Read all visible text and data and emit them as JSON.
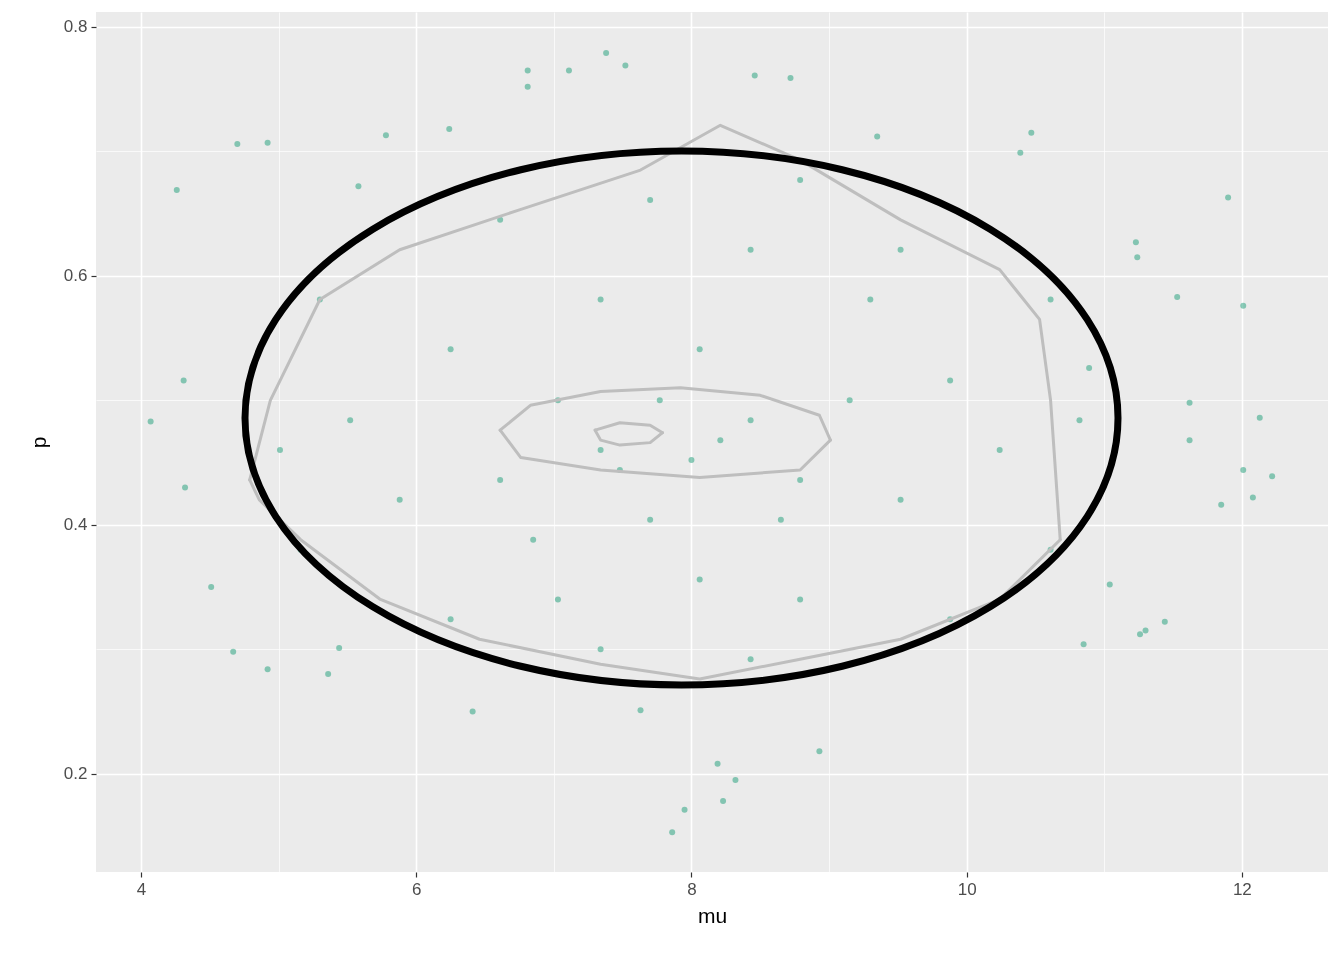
{
  "chart_data": {
    "type": "scatter",
    "xlabel": "mu",
    "ylabel": "p",
    "xlim": [
      3.673,
      12.626
    ],
    "ylim": [
      0.121,
      0.812
    ],
    "xticks": [
      4,
      {
        "value": 5,
        "label": null
      },
      6,
      {
        "value": 7,
        "label": null
      },
      8,
      {
        "value": 9,
        "label": null
      },
      10,
      {
        "value": 11,
        "label": null
      },
      12
    ],
    "yticks": [
      {
        "value": 0.2,
        "label": "0.2"
      },
      {
        "value": 0.3,
        "label": null
      },
      {
        "value": 0.4,
        "label": "0.4"
      },
      {
        "value": 0.5,
        "label": null
      },
      {
        "value": 0.6,
        "label": "0.6"
      },
      {
        "value": 0.7,
        "label": null
      },
      {
        "value": 0.8,
        "label": "0.8"
      }
    ],
    "grid": true,
    "series": [
      {
        "marker": "circle",
        "color": "#1b9e77",
        "x": [
          4.07,
          4.26,
          4.7,
          4.92,
          4.31,
          4.32,
          4.51,
          4.67,
          4.92,
          5.36,
          5.44,
          5.78,
          5.58,
          6.24,
          6.41,
          6.81,
          6.81,
          7.11,
          7.38,
          7.52,
          7.63,
          7.86,
          7.95,
          8.19,
          8.23,
          8.32,
          8.46,
          8.72,
          8.93,
          9.35,
          10.47,
          10.39,
          11.23,
          11.24,
          11.53,
          11.9,
          12.01,
          12.13,
          12.22,
          12.01,
          12.08,
          11.85,
          11.62,
          11.62,
          11.3,
          11.26,
          11.44,
          10.85,
          11.04,
          10.89,
          8.0,
          7.34,
          8.43,
          7.03,
          8.79,
          7.7,
          6.61,
          9.15,
          8.06,
          7.34,
          6.25,
          9.52,
          8.06,
          8.79,
          7.03,
          5.88,
          9.88,
          10.24,
          5.52,
          5.16,
          5.3,
          10.61,
          10.61,
          8.43,
          7.7,
          8.79,
          6.61,
          9.52,
          7.34,
          8.43,
          6.25,
          9.88,
          5.01,
          10.82,
          7.48,
          8.21,
          7.77,
          8.65,
          6.85,
          9.3
        ],
        "values": [
          0.483,
          0.669,
          0.706,
          0.707,
          0.516,
          0.43,
          0.35,
          0.298,
          0.284,
          0.28,
          0.301,
          0.713,
          0.672,
          0.718,
          0.25,
          0.765,
          0.752,
          0.765,
          0.779,
          0.769,
          0.251,
          0.153,
          0.171,
          0.208,
          0.178,
          0.195,
          0.761,
          0.759,
          0.218,
          0.712,
          0.715,
          0.699,
          0.627,
          0.615,
          0.583,
          0.663,
          0.576,
          0.486,
          0.439,
          0.444,
          0.422,
          0.416,
          0.468,
          0.498,
          0.315,
          0.312,
          0.322,
          0.304,
          0.352,
          0.526,
          0.452,
          0.46,
          0.484,
          0.5,
          0.436,
          0.404,
          0.436,
          0.5,
          0.541,
          0.581,
          0.541,
          0.42,
          0.356,
          0.34,
          0.34,
          0.42,
          0.516,
          0.46,
          0.484,
          0.38,
          0.581,
          0.581,
          0.38,
          0.621,
          0.661,
          0.677,
          0.645,
          0.621,
          0.3,
          0.292,
          0.324,
          0.324,
          0.46,
          0.484,
          0.444,
          0.468,
          0.5,
          0.404,
          0.388,
          0.581
        ]
      },
      {
        "type": "line",
        "color": "#bebebe",
        "x": [
          4.79,
          4.94,
          5.3,
          5.88,
          6.75,
          7.63,
          8.21,
          8.79,
          9.52,
          10.24,
          10.53,
          10.61,
          10.68
        ],
        "values": [
          0.436,
          0.5,
          0.581,
          0.621,
          0.653,
          0.685,
          0.721,
          0.693,
          0.645,
          0.605,
          0.565,
          0.5,
          0.388
        ]
      },
      {
        "type": "line",
        "color": "#bebebe",
        "x": [
          4.79,
          4.86,
          5.16,
          5.74,
          6.46,
          7.34,
          8.06,
          8.79,
          9.52,
          10.24,
          10.68
        ],
        "values": [
          0.436,
          0.42,
          0.388,
          0.34,
          0.308,
          0.288,
          0.276,
          0.292,
          0.308,
          0.34,
          0.388
        ]
      },
      {
        "type": "line",
        "color": "#bebebe",
        "x": [
          6.61,
          6.83,
          7.34,
          7.92,
          8.5,
          8.93,
          9.01
        ],
        "values": [
          0.476,
          0.496,
          0.507,
          0.51,
          0.504,
          0.488,
          0.468
        ]
      },
      {
        "type": "line",
        "color": "#bebebe",
        "x": [
          6.61,
          6.76,
          7.34,
          8.06,
          8.79,
          9.01
        ],
        "values": [
          0.476,
          0.454,
          0.444,
          0.438,
          0.444,
          0.468
        ]
      },
      {
        "type": "line",
        "color": "#bebebe",
        "x": [
          7.3,
          7.48,
          7.7,
          7.79
        ],
        "values": [
          0.476,
          0.482,
          0.48,
          0.474
        ]
      },
      {
        "type": "line",
        "color": "#bebebe",
        "x": [
          7.3,
          7.34,
          7.48,
          7.7,
          7.79
        ],
        "values": [
          0.476,
          0.468,
          0.464,
          0.466,
          0.474
        ]
      }
    ]
  }
}
